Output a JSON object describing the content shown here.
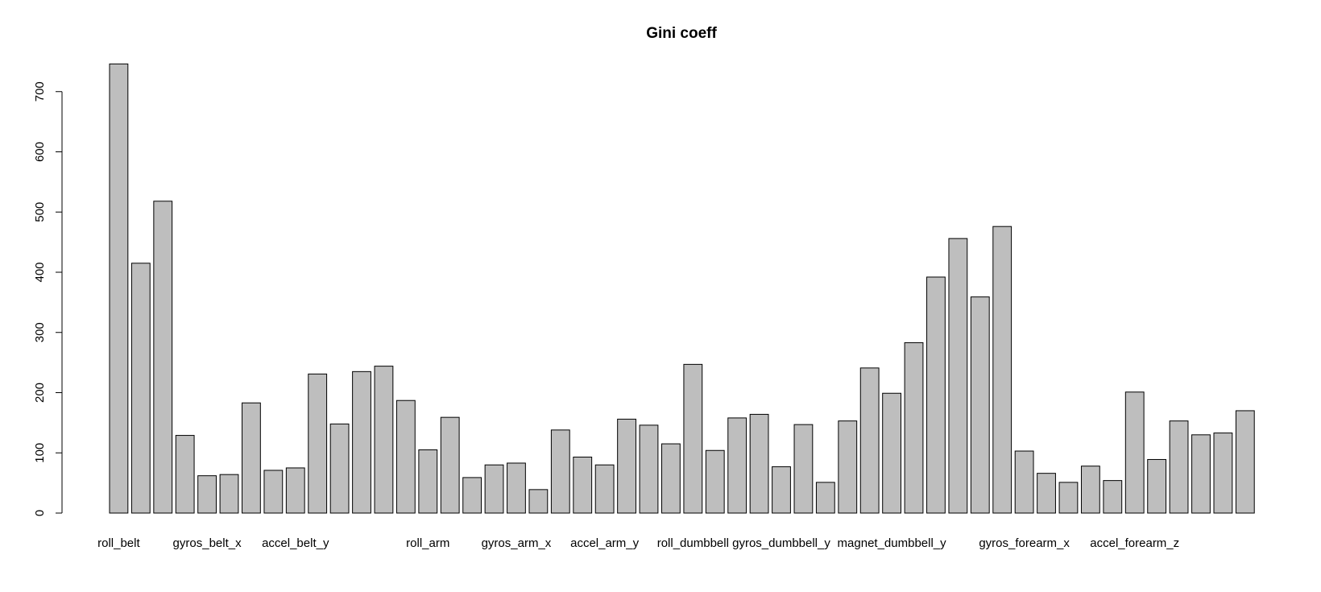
{
  "chart_data": {
    "type": "bar",
    "title": "Gini coeff",
    "xlabel": "",
    "ylabel": "",
    "ylim": [
      0,
      750
    ],
    "yticks": [
      0,
      100,
      200,
      300,
      400,
      500,
      600,
      700
    ],
    "grid": false,
    "legend": "none",
    "categories": [
      "roll_belt",
      "",
      "",
      "",
      "gyros_belt_x",
      "",
      "",
      "",
      "accel_belt_y",
      "",
      "",
      "",
      "",
      "",
      "roll_arm",
      "",
      "",
      "",
      "gyros_arm_x",
      "",
      "",
      "",
      "accel_arm_y",
      "",
      "",
      "",
      "roll_dumbbell",
      "",
      "",
      "",
      "gyros_dumbbell_y",
      "",
      "",
      "",
      "",
      "magnet_dumbbell_y",
      "",
      "",
      "",
      "",
      "",
      "gyros_forearm_x",
      "",
      "",
      "",
      "",
      "accel_forearm_z",
      "",
      "",
      "",
      "",
      ""
    ],
    "values": [
      746,
      415,
      518,
      129,
      62,
      64,
      183,
      71,
      75,
      231,
      148,
      235,
      244,
      187,
      105,
      159,
      59,
      80,
      83,
      39,
      138,
      93,
      80,
      156,
      146,
      115,
      247,
      104,
      158,
      164,
      77,
      147,
      51,
      153,
      241,
      199,
      283,
      392,
      456,
      359,
      476,
      103,
      66,
      51,
      78,
      54,
      201,
      89,
      153,
      130,
      133,
      170
    ],
    "colors": {
      "bar_fill": "#bebebe",
      "bar_stroke": "#000000",
      "background": "#ffffff"
    }
  }
}
